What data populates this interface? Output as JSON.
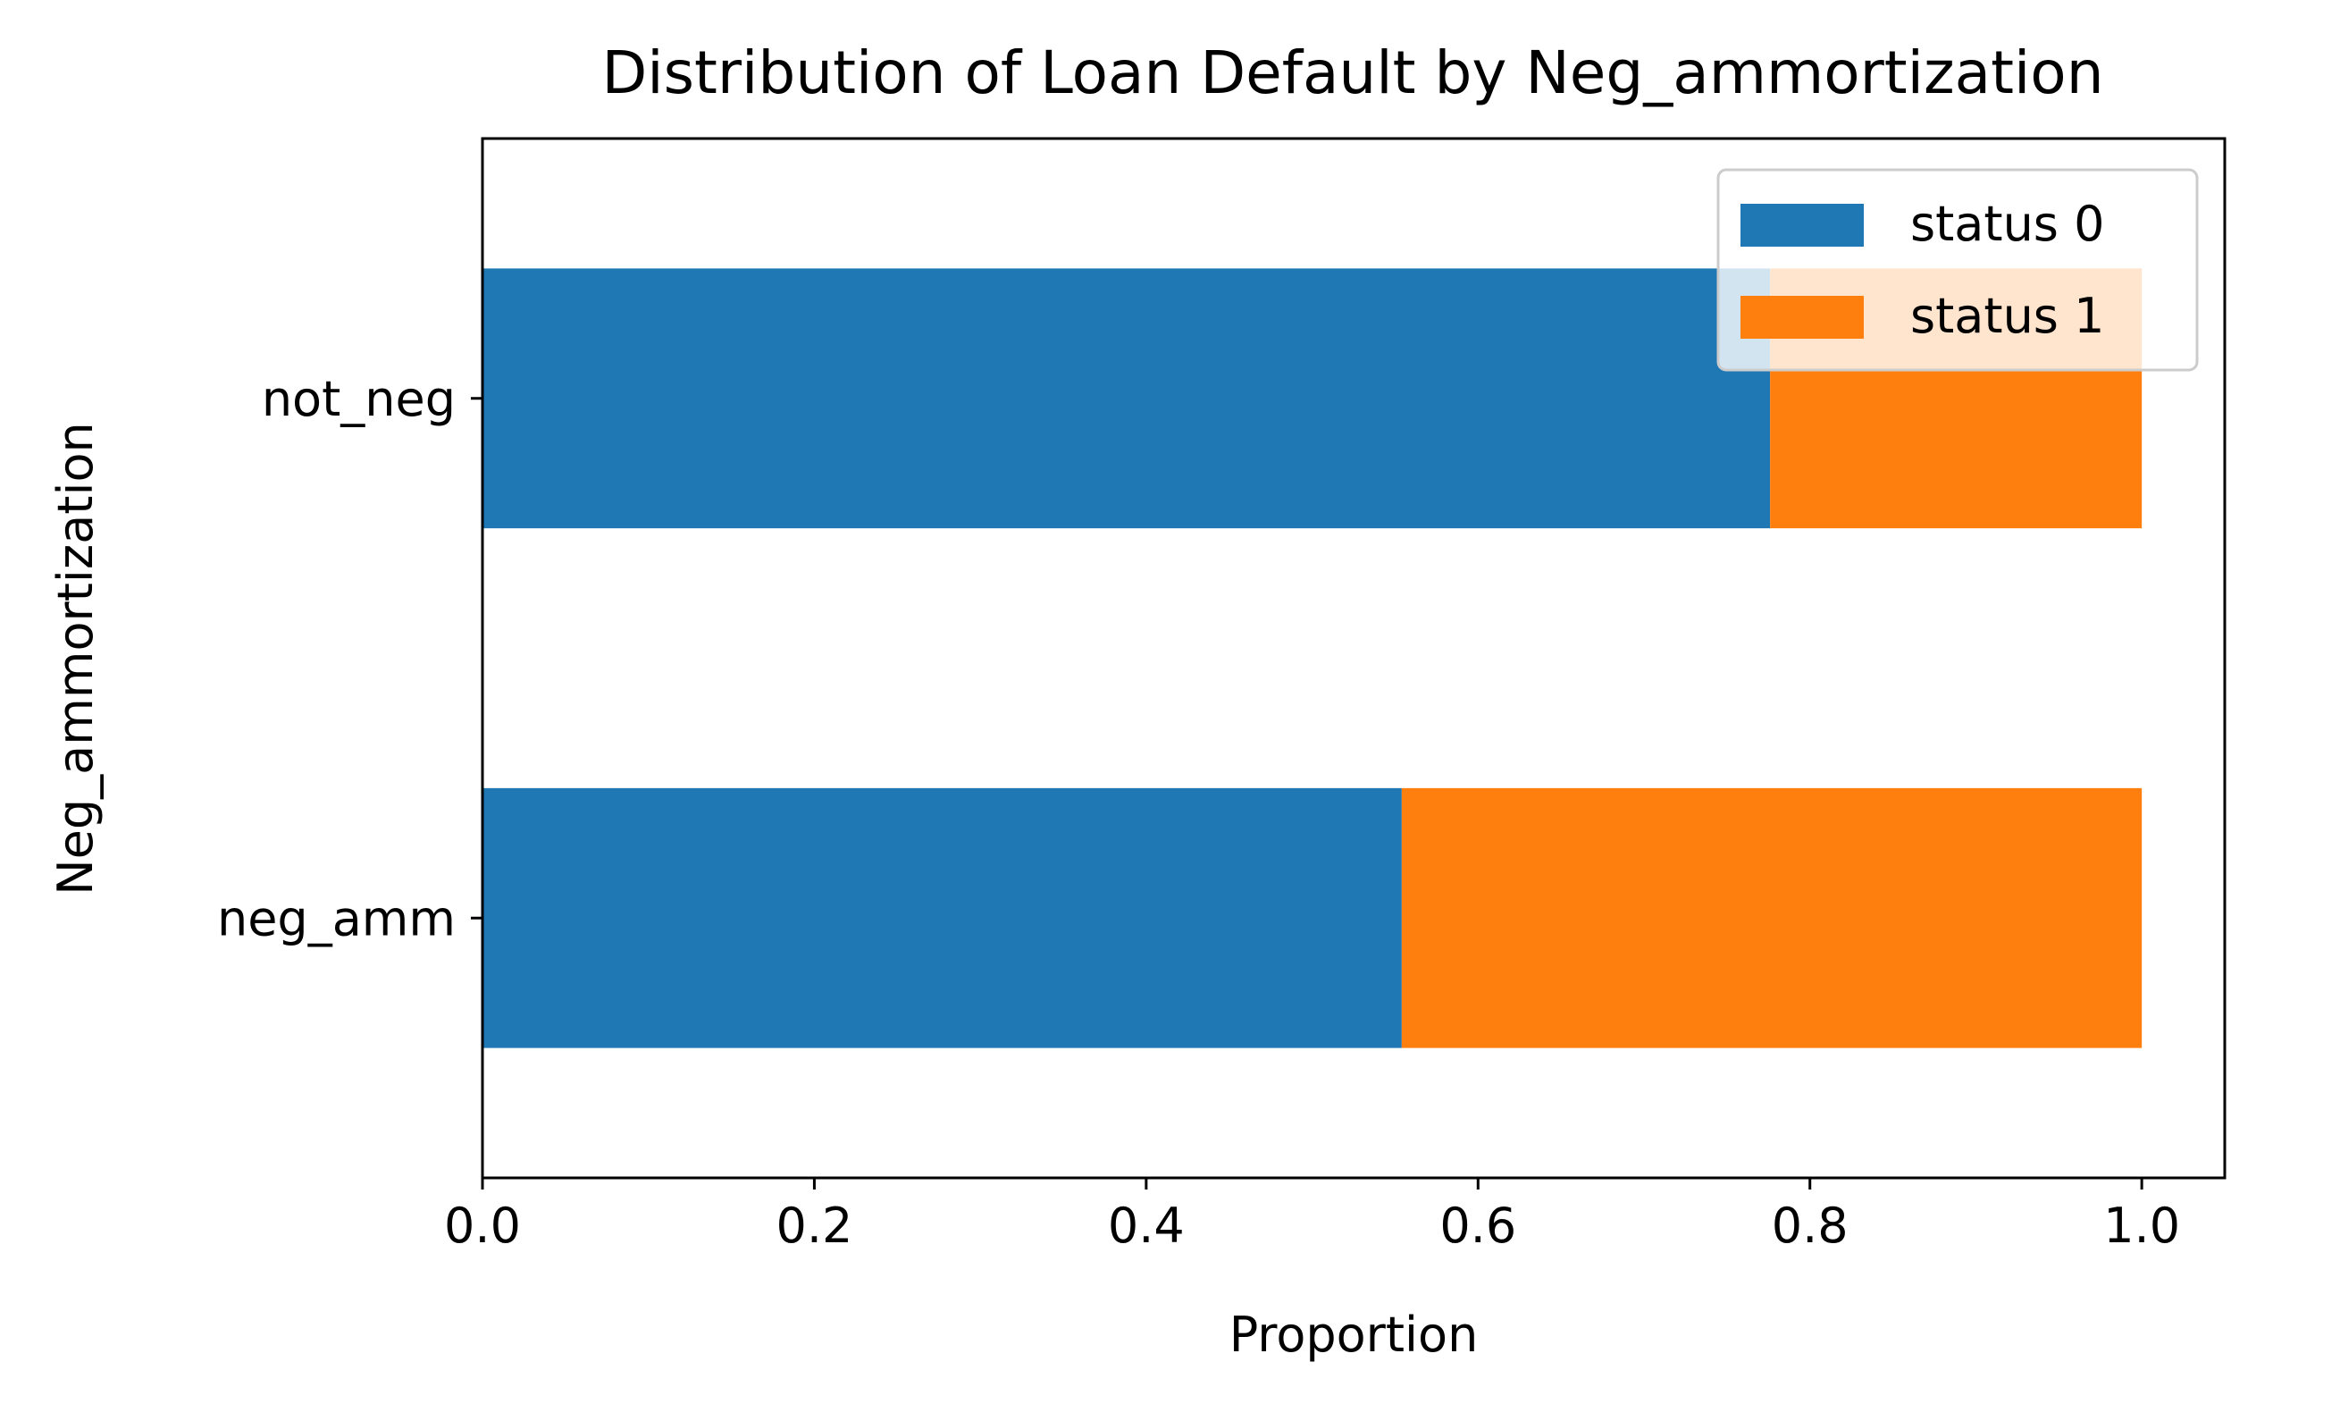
{
  "colors": {
    "status_0": "#1f77b4",
    "status_1": "#ff7f0e",
    "axis": "#000000",
    "legend_border": "#cccccc"
  },
  "chart_data": {
    "type": "bar",
    "orientation": "horizontal",
    "stacked": true,
    "title": "Distribution of Loan Default by Neg_ammortization",
    "xlabel": "Proportion",
    "ylabel": "Neg_ammortization",
    "categories": [
      "neg_amm",
      "not_neg"
    ],
    "series": [
      {
        "name": "status 0",
        "values": [
          0.554,
          0.776
        ]
      },
      {
        "name": "status 1",
        "values": [
          0.446,
          0.224
        ]
      }
    ],
    "xlim": [
      0,
      1.05
    ],
    "xticks": [
      0.0,
      0.2,
      0.4,
      0.6,
      0.8,
      1.0
    ],
    "xtick_labels": [
      "0.0",
      "0.2",
      "0.4",
      "0.6",
      "0.8",
      "1.0"
    ],
    "grid": false,
    "legend_position": "top-right"
  }
}
